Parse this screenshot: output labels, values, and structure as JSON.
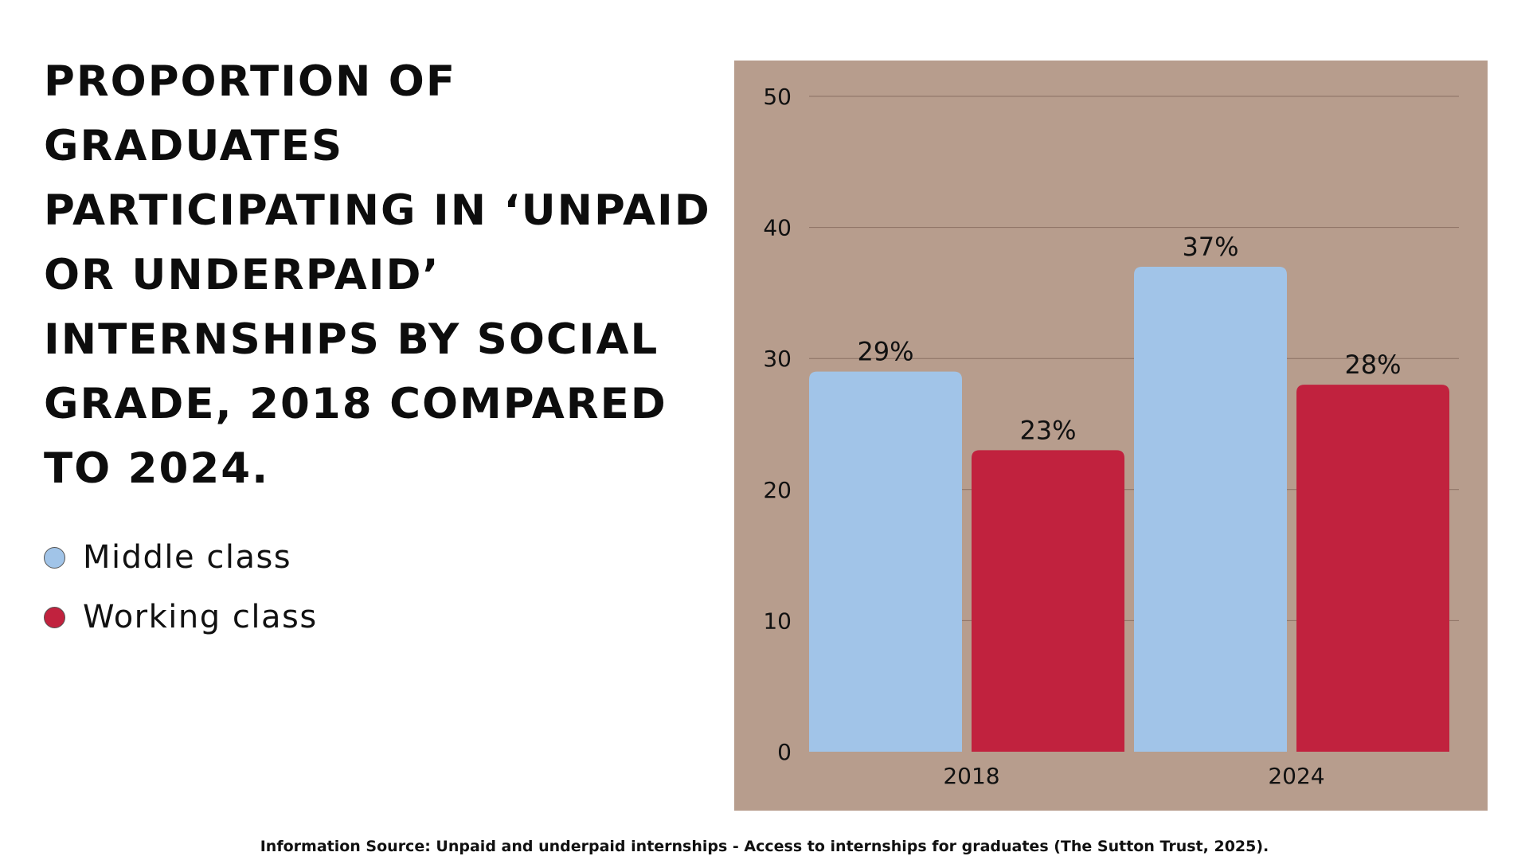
{
  "page": {
    "title": "Proportion of graduates participating in ‘unpaid or underpaid’ internships by social grade, 2018 compared to 2024.",
    "source": "Information Source: Unpaid and underpaid internships - Access to internships for graduates (The Sutton Trust, 2025)."
  },
  "chart_data": {
    "type": "bar",
    "categories": [
      "2018",
      "2024"
    ],
    "series": [
      {
        "name": "Middle class",
        "values": [
          29,
          37
        ],
        "labels": [
          "29%",
          "37%"
        ],
        "color": "#a1c4e8"
      },
      {
        "name": "Working class",
        "values": [
          23,
          28
        ],
        "labels": [
          "23%",
          "28%"
        ],
        "color": "#c1223e"
      }
    ],
    "ylim": [
      0,
      50
    ],
    "yticks": [
      0,
      10,
      20,
      30,
      40,
      50
    ],
    "grid": true,
    "legend": "left",
    "background": "#b79d8d"
  }
}
